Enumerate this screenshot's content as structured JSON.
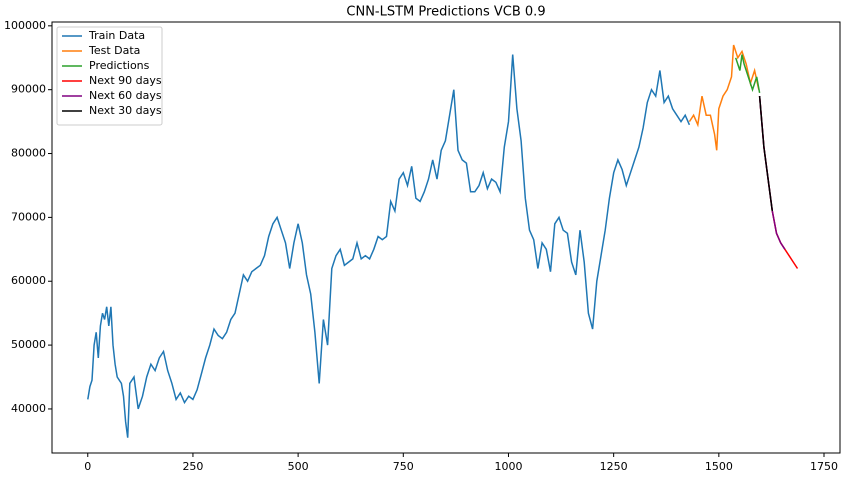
{
  "chart_data": {
    "type": "line",
    "title": "CNN-LSTM Predictions VCB 0.9",
    "xlim": [
      -85,
      1788
    ],
    "ylim": [
      33100,
      100600
    ],
    "xticks": [
      0,
      250,
      500,
      750,
      1000,
      1250,
      1500,
      1750
    ],
    "yticks": [
      40000,
      50000,
      60000,
      70000,
      80000,
      90000,
      100000
    ],
    "legend": "upper left",
    "series": [
      {
        "name": "Train Data",
        "color": "#1f77b4",
        "x": [
          0,
          5,
          10,
          15,
          20,
          25,
          30,
          35,
          40,
          45,
          50,
          55,
          60,
          65,
          70,
          80,
          85,
          90,
          95,
          100,
          110,
          120,
          130,
          140,
          150,
          160,
          170,
          180,
          190,
          200,
          210,
          220,
          230,
          240,
          250,
          260,
          270,
          280,
          290,
          300,
          310,
          320,
          330,
          340,
          350,
          360,
          370,
          380,
          390,
          400,
          410,
          420,
          430,
          440,
          450,
          460,
          470,
          480,
          490,
          500,
          510,
          520,
          530,
          540,
          550,
          560,
          570,
          580,
          590,
          600,
          610,
          620,
          630,
          640,
          650,
          660,
          670,
          680,
          690,
          700,
          710,
          720,
          730,
          740,
          750,
          760,
          770,
          780,
          790,
          800,
          810,
          820,
          830,
          840,
          850,
          860,
          870,
          880,
          890,
          900,
          910,
          920,
          930,
          940,
          950,
          960,
          970,
          980,
          990,
          1000,
          1010,
          1020,
          1030,
          1040,
          1050,
          1060,
          1070,
          1080,
          1090,
          1100,
          1110,
          1120,
          1130,
          1140,
          1150,
          1160,
          1170,
          1180,
          1190,
          1200,
          1210,
          1220,
          1230,
          1240,
          1250,
          1260,
          1270,
          1280,
          1290,
          1300,
          1310,
          1320,
          1330,
          1340,
          1350,
          1360,
          1370,
          1380,
          1390,
          1400,
          1410,
          1420,
          1430
        ],
        "values": [
          41500,
          43500,
          44500,
          50000,
          52000,
          48000,
          53000,
          55000,
          54000,
          56000,
          53000,
          56000,
          50000,
          47000,
          45000,
          44000,
          42000,
          38000,
          35500,
          44000,
          45000,
          40000,
          42000,
          45000,
          47000,
          46000,
          48000,
          49000,
          46000,
          44000,
          41500,
          42500,
          41000,
          42000,
          41500,
          43000,
          45500,
          48000,
          50000,
          52500,
          51500,
          51000,
          52000,
          54000,
          55000,
          58000,
          61000,
          60000,
          61500,
          62000,
          62500,
          64000,
          67000,
          69000,
          70000,
          68000,
          66000,
          62000,
          66000,
          69000,
          66000,
          61000,
          58000,
          52000,
          44000,
          54000,
          50000,
          62000,
          64000,
          65000,
          62500,
          63000,
          63500,
          66000,
          63500,
          64000,
          63500,
          65000,
          67000,
          66500,
          67000,
          72500,
          71000,
          76000,
          77000,
          75000,
          78000,
          73000,
          72500,
          74000,
          76000,
          79000,
          76000,
          80500,
          82000,
          86000,
          90000,
          80500,
          79000,
          78500,
          74000,
          74000,
          75000,
          77000,
          74500,
          76000,
          75500,
          74000,
          81000,
          85000,
          95500,
          87000,
          82000,
          73000,
          68000,
          66500,
          62000,
          66000,
          65000,
          61500,
          69000,
          70000,
          68000,
          67500,
          63000,
          61000,
          68000,
          63000,
          55000,
          52500,
          60000,
          64000,
          68000,
          73000,
          77000,
          79000,
          77500,
          75000,
          77000,
          79000,
          81000,
          84000,
          88000,
          90000,
          89000,
          93000,
          88000,
          89000,
          87000,
          86000,
          85000,
          86000,
          84500
        ]
      },
      {
        "name": "Test Data",
        "color": "#ff7f0e",
        "x": [
          1430,
          1440,
          1450,
          1460,
          1470,
          1480,
          1490,
          1495,
          1500,
          1510,
          1520,
          1530,
          1535,
          1545,
          1555,
          1565,
          1575,
          1585,
          1595
        ],
        "values": [
          85000,
          86000,
          84500,
          89000,
          86000,
          86000,
          83000,
          80500,
          87000,
          89000,
          90000,
          92000,
          97000,
          95000,
          96000,
          94000,
          91000,
          93000,
          90000
        ]
      },
      {
        "name": "Predictions",
        "color": "#2ca02c",
        "x": [
          1540,
          1550,
          1555,
          1560,
          1570,
          1580,
          1590,
          1597
        ],
        "values": [
          95000,
          93000,
          95500,
          94000,
          92000,
          90000,
          92000,
          89500
        ]
      },
      {
        "name": "Next 90 days",
        "color": "#ff0000",
        "x": [
          1597,
          1607,
          1617,
          1627,
          1637,
          1647,
          1657,
          1667,
          1677,
          1687
        ],
        "values": [
          89000,
          81000,
          76000,
          71000,
          67500,
          66000,
          65000,
          64000,
          63000,
          62000
        ]
      },
      {
        "name": "Next 60 days",
        "color": "#800080",
        "x": [
          1597,
          1607,
          1617,
          1627,
          1637,
          1647,
          1657
        ],
        "values": [
          89000,
          81000,
          76000,
          71000,
          67500,
          66000,
          65000
        ]
      },
      {
        "name": "Next 30 days",
        "color": "#000000",
        "x": [
          1597,
          1607,
          1617,
          1627
        ],
        "values": [
          89000,
          81000,
          76000,
          71000
        ]
      }
    ]
  }
}
